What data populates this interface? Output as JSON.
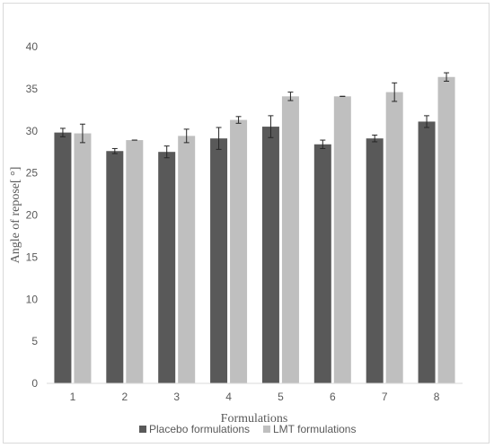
{
  "chart_data": {
    "type": "bar",
    "title": "",
    "xlabel": "Formulations",
    "ylabel": "Angle of repose[ °]",
    "categories": [
      "1",
      "2",
      "3",
      "4",
      "5",
      "6",
      "7",
      "8"
    ],
    "ylim": [
      0,
      40
    ],
    "yticks": [
      0,
      5,
      10,
      15,
      20,
      25,
      30,
      35,
      40
    ],
    "grid": false,
    "legend_position": "bottom",
    "series": [
      {
        "name": "Placebo formulations",
        "color": "#595959",
        "values": [
          29.8,
          27.6,
          27.5,
          29.1,
          30.5,
          28.4,
          29.1,
          31.1
        ],
        "errors": [
          0.5,
          0.3,
          0.7,
          1.3,
          1.3,
          0.5,
          0.4,
          0.7
        ]
      },
      {
        "name": "LMT formulations",
        "color": "#bfbfbf",
        "values": [
          29.7,
          28.9,
          29.4,
          31.3,
          34.1,
          34.1,
          34.6,
          36.4
        ],
        "errors": [
          1.1,
          0.0,
          0.8,
          0.4,
          0.5,
          0.0,
          1.1,
          0.5
        ]
      }
    ]
  }
}
